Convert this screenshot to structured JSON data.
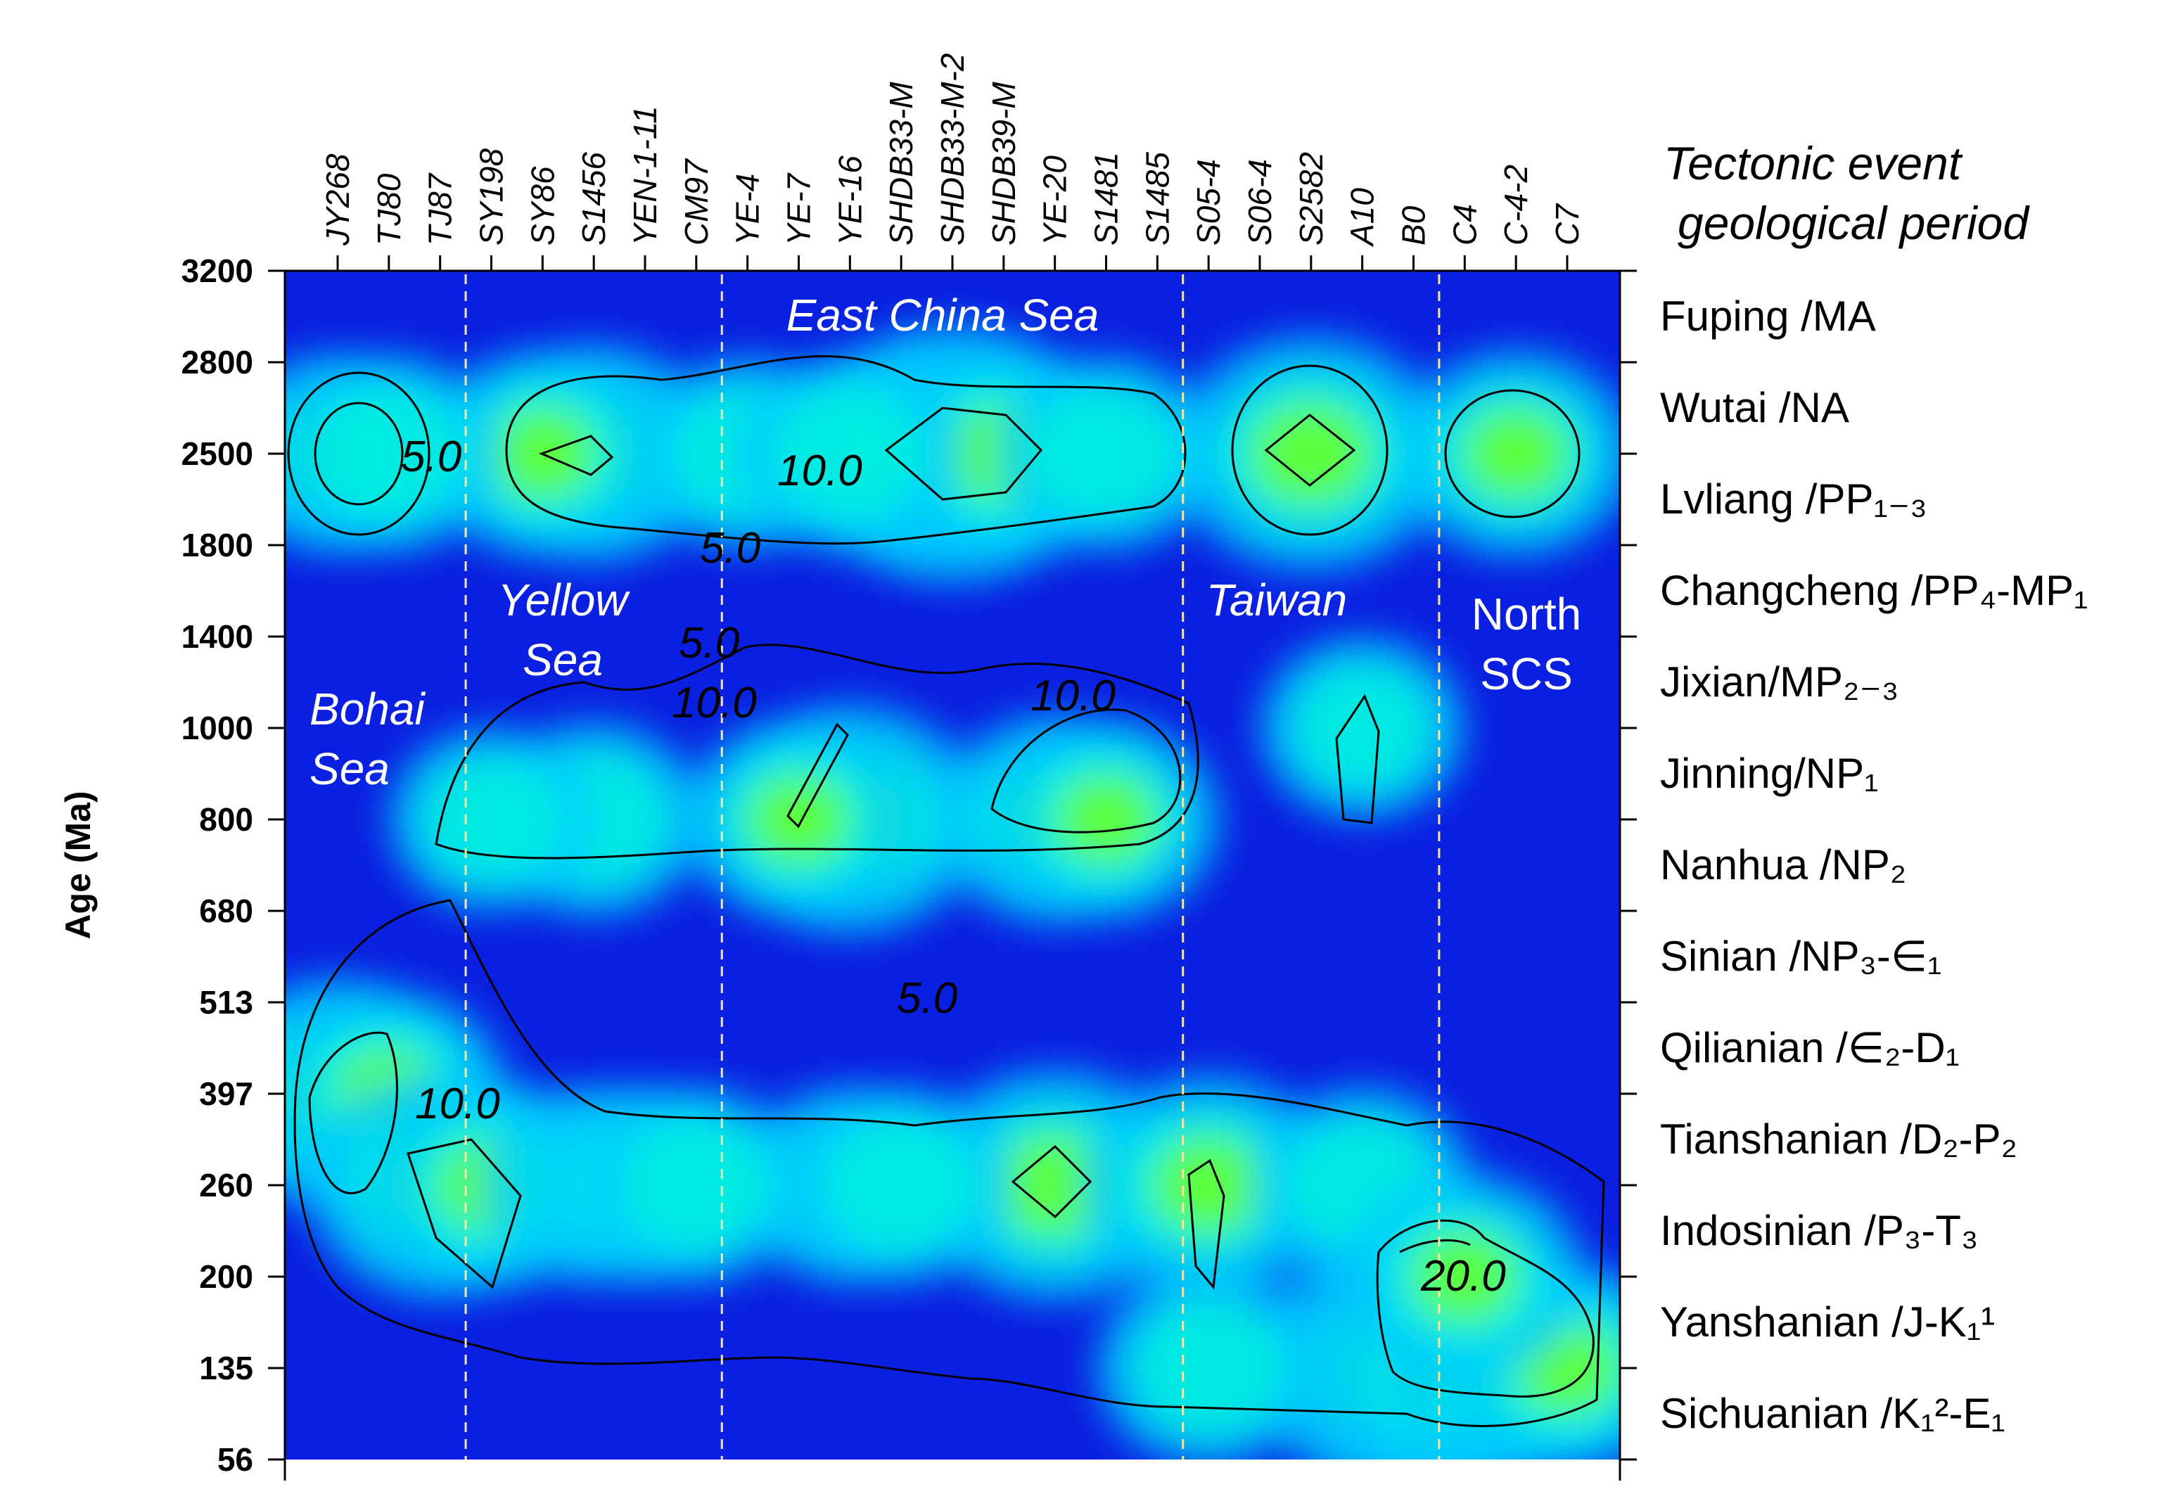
{
  "chart_data": {
    "type": "heatmap",
    "ylabel": "Age (Ma)",
    "y_ticks": [
      "3200",
      "2800",
      "2500",
      "1800",
      "1400",
      "1000",
      "800",
      "680",
      "513",
      "397",
      "260",
      "200",
      "135",
      "56"
    ],
    "samples": [
      "JY268",
      "TJ80",
      "TJ87",
      "SY198",
      "SY86",
      "S1456",
      "YEN-1-11",
      "CM97",
      "YE-4",
      "YE-7",
      "YE-16",
      "SHDB33-M",
      "SHDB33-M-2",
      "SHDB39-M",
      "YE-20",
      "S1481",
      "S1485",
      "S05-4",
      "S06-4",
      "S2582",
      "A10",
      "B0",
      "C4",
      "C-4-2",
      "C7"
    ],
    "legend_title": [
      "Tectonic event",
      "geological period"
    ],
    "events": [
      {
        "name": "Fuping /MA",
        "from": "2800",
        "to": "3200"
      },
      {
        "name": "Wutai /NA",
        "from": "2500",
        "to": "2800"
      },
      {
        "name": "Lvliang /PP₁₋₃",
        "from": "1800",
        "to": "2500"
      },
      {
        "name": "Changcheng /PP₄-MP₁",
        "from": "1400",
        "to": "1800"
      },
      {
        "name": "Jixian/MP₂₋₃",
        "from": "1000",
        "to": "1400"
      },
      {
        "name": "Jinning/NP₁",
        "from": "800",
        "to": "1000"
      },
      {
        "name": "Nanhua /NP₂",
        "from": "680",
        "to": "800"
      },
      {
        "name": "Sinian /NP₃-∈₁",
        "from": "513",
        "to": "680"
      },
      {
        "name": "Qilianian /∈₂-D₁",
        "from": "397",
        "to": "513"
      },
      {
        "name": "Tianshanian /D₂-P₂",
        "from": "260",
        "to": "397"
      },
      {
        "name": "Indosinian /P₃-T₃",
        "from": "200",
        "to": "260"
      },
      {
        "name": "Yanshanian /J-K₁¹",
        "from": "135",
        "to": "200"
      },
      {
        "name": "Sichuanian /K₁²-E₁",
        "from": "56",
        "to": "135"
      }
    ],
    "regions": [
      {
        "name": [
          "Bohai",
          "Sea"
        ],
        "samples": [
          "JY268",
          "TJ80",
          "TJ87"
        ]
      },
      {
        "name": [
          "Yellow",
          "Sea"
        ],
        "samples": [
          "TJ87",
          "SY198",
          "SY86",
          "S1456",
          "YEN-1-11",
          "CM97"
        ]
      },
      {
        "name": [
          "East China Sea"
        ],
        "samples": [
          "CM97",
          "YE-4",
          "YE-7",
          "YE-16",
          "SHDB33-M",
          "SHDB33-M-2",
          "SHDB39-M",
          "YE-20",
          "S1481",
          "S1485"
        ]
      },
      {
        "name": [
          "Taiwan"
        ],
        "samples": [
          "S1485",
          "S05-4",
          "S06-4",
          "S2582",
          "A10",
          "B0"
        ]
      },
      {
        "name": [
          "North",
          "SCS"
        ],
        "samples": [
          "B0",
          "C4",
          "C-4-2",
          "C7"
        ]
      }
    ],
    "boundaries_after_sample": [
      "TJ87",
      "CM97",
      "S1485",
      "B0"
    ],
    "contour_levels": [
      "5.0",
      "10.0",
      "20.0"
    ],
    "colors": {
      "low": "#0a1fe0",
      "mid_low": "#00c8ff",
      "mid": "#00f0e0",
      "mid_high": "#5cff3a",
      "high": "#ffe000",
      "peak": "#ff1a00",
      "boundary": "#f5e6a0"
    },
    "hotspots": [
      {
        "sample": "SHDB33-M-2",
        "age_band": "2500",
        "level": 0.95
      },
      {
        "sample": "SHDB33-M",
        "age_band": "2500",
        "level": 0.62
      },
      {
        "sample": "SHDB39-M",
        "age_band": "2500",
        "level": 0.6
      },
      {
        "sample": "S2582",
        "age_band": "2500",
        "level": 0.75
      },
      {
        "sample": "S1456",
        "age_band": "2500",
        "level": 0.6
      },
      {
        "sample": "SY86",
        "age_band": "2500",
        "level": 0.5
      },
      {
        "sample": "JY268",
        "age_band": "2500",
        "level": 0.45
      },
      {
        "sample": "TJ80",
        "age_band": "2500",
        "level": 0.42
      },
      {
        "sample": "C-4-2",
        "age_band": "2500",
        "level": 0.5
      },
      {
        "sample": "YE-4",
        "age_band": "2500",
        "level": 0.38
      },
      {
        "sample": "YE-16",
        "age_band": "2500",
        "level": 0.42
      },
      {
        "sample": "S1481",
        "age_band": "2500",
        "level": 0.4
      },
      {
        "sample": "YE-16",
        "age_band": "800",
        "level": 0.7
      },
      {
        "sample": "YE-7",
        "age_band": "800",
        "level": 0.45
      },
      {
        "sample": "YE-20",
        "age_band": "800",
        "level": 0.52
      },
      {
        "sample": "S1481",
        "age_band": "800",
        "level": 0.45
      },
      {
        "sample": "S1456",
        "age_band": "800",
        "level": 0.4
      },
      {
        "sample": "SY198",
        "age_band": "800",
        "level": 0.3
      },
      {
        "sample": "A10",
        "age_band": "1000",
        "level": 0.3
      },
      {
        "sample": "JY268",
        "age_band": "397",
        "level": 0.72
      },
      {
        "sample": "TJ80",
        "age_band": "397",
        "level": 0.5
      },
      {
        "sample": "TJ87",
        "age_band": "260",
        "level": 0.68
      },
      {
        "sample": "SY198",
        "age_band": "260",
        "level": 0.52
      },
      {
        "sample": "YE-20",
        "age_band": "260",
        "level": 0.72
      },
      {
        "sample": "S05-4",
        "age_band": "260",
        "level": 0.62
      },
      {
        "sample": "YE-16",
        "age_band": "260",
        "level": 0.42
      },
      {
        "sample": "S1456",
        "age_band": "260",
        "level": 0.42
      },
      {
        "sample": "YEN-1-11",
        "age_band": "260",
        "level": 0.42
      },
      {
        "sample": "CM97",
        "age_band": "260",
        "level": 0.4
      },
      {
        "sample": "SHDB33-M",
        "age_band": "260",
        "level": 0.4
      },
      {
        "sample": "A10",
        "age_band": "260",
        "level": 0.4
      },
      {
        "sample": "B0",
        "age_band": "135",
        "level": 1.0
      },
      {
        "sample": "C4",
        "age_band": "135",
        "level": 0.82
      },
      {
        "sample": "C-4-2",
        "age_band": "135",
        "level": 0.6
      },
      {
        "sample": "C7",
        "age_band": "135",
        "level": 0.5
      },
      {
        "sample": "S05-4",
        "age_band": "135",
        "level": 0.42
      },
      {
        "sample": "C4",
        "age_band": "200",
        "level": 0.5
      }
    ]
  }
}
